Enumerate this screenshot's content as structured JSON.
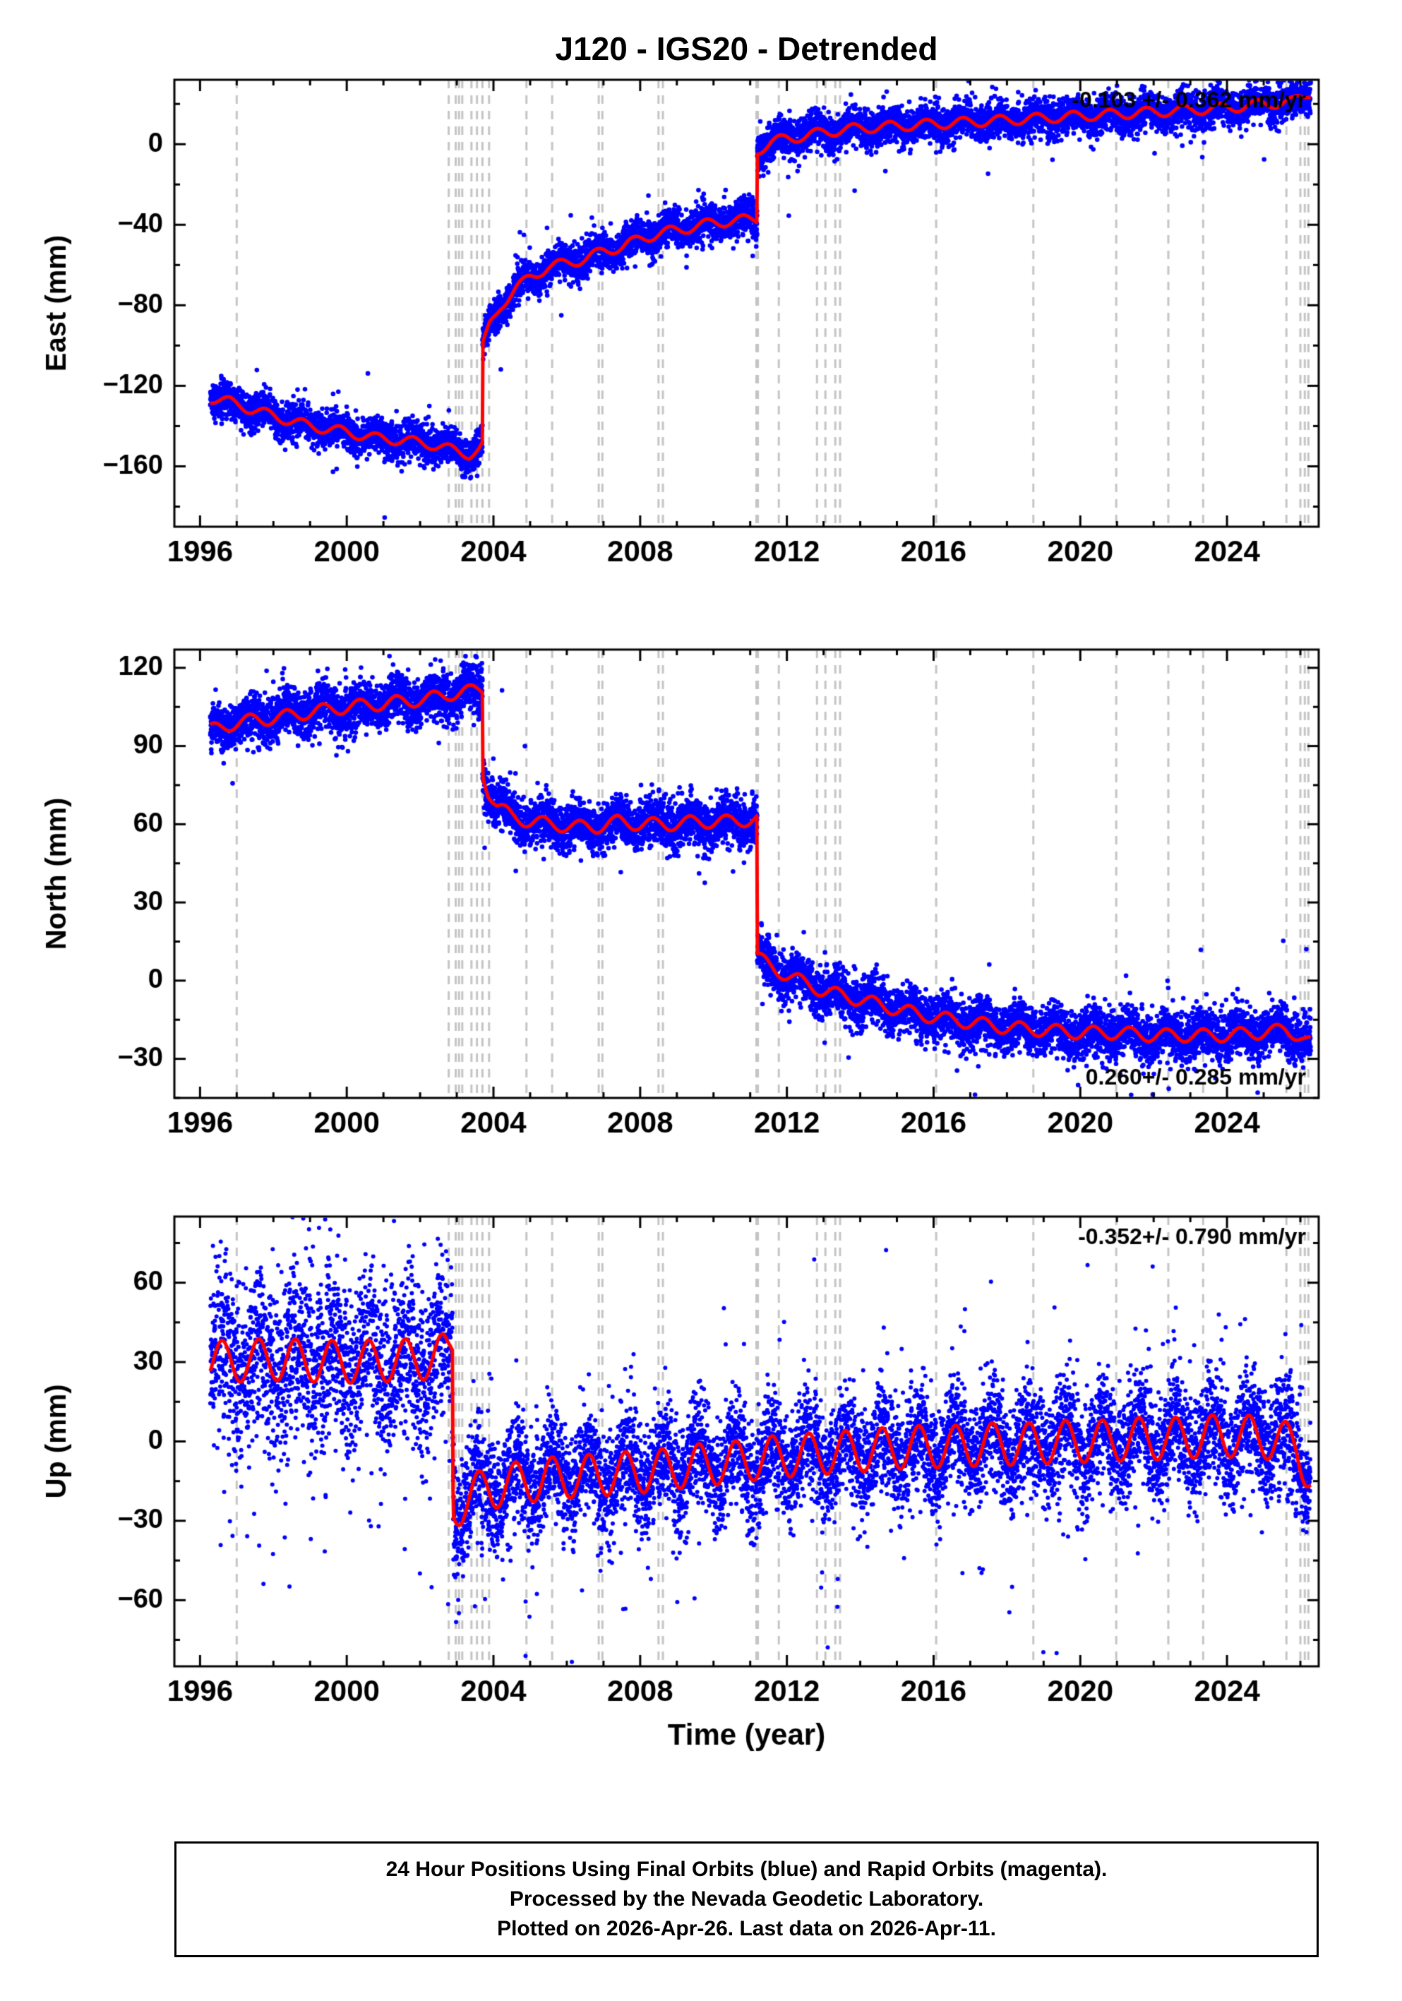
{
  "page": {
    "title": "J120 - IGS20 - Detrended",
    "caption_lines": [
      "24 Hour Positions Using Final Orbits (blue) and Rapid Orbits (magenta).",
      "Processed by the Nevada Geodetic Laboratory.",
      "Plotted on 2026-Apr-26. Last data on 2026-Apr-11."
    ]
  },
  "colors": {
    "points": "#0000ff",
    "trend_line": "#ff0000",
    "event_lines": "#c4c4c4",
    "frame": "#000000",
    "background": "#ffffff"
  },
  "chart_data": {
    "type": "scatter",
    "title": "J120 - IGS20 - Detrended",
    "xlabel": "Time (year)",
    "x_range": [
      1995.3,
      2026.5
    ],
    "xticks": [
      1996,
      2000,
      2004,
      2008,
      2012,
      2016,
      2020,
      2024
    ],
    "x_minor_step": 1,
    "data_span": [
      1996.28,
      2026.28
    ],
    "event_lines": [
      1997.0,
      2002.78,
      2002.97,
      2003.06,
      2003.15,
      2003.4,
      2003.55,
      2003.7,
      2003.88,
      2004.9,
      2005.6,
      2006.87,
      2006.97,
      2008.5,
      2008.62,
      2011.17,
      2011.21,
      2011.78,
      2012.82,
      2013.05,
      2013.32,
      2013.45,
      2016.07,
      2018.72,
      2020.98,
      2022.4,
      2023.35,
      2025.62,
      2026.0,
      2026.12,
      2026.22
    ],
    "panels": [
      {
        "name": "east",
        "ylabel": "East (mm)",
        "ylim": [
          -190,
          32
        ],
        "yticks": [
          0,
          -40,
          -80,
          -120,
          -160
        ],
        "y_minor_step": 20,
        "rate_text": "-0.103 +/- 0.362 mm/yr",
        "rate_corner": "top-right",
        "seasonal_amp_mm": 2.5,
        "seasonal_phase": 0.55,
        "noise_segments": [
          [
            1995.0,
            2026.6,
            4.5,
            0.015
          ]
        ],
        "trend_mm": [
          [
            1996.28,
            -126
          ],
          [
            1996.8,
            -128
          ],
          [
            1997.3,
            -131
          ],
          [
            1998.0,
            -135
          ],
          [
            1999.0,
            -140
          ],
          [
            2000.0,
            -143
          ],
          [
            2000.8,
            -146
          ],
          [
            2001.5,
            -147
          ],
          [
            2002.3,
            -149
          ],
          [
            2002.9,
            -152
          ],
          [
            2003.35,
            -154
          ],
          [
            2003.6,
            -152
          ],
          [
            2003.7,
            -150
          ],
          [
            2003.7,
            -101
          ],
          [
            2003.9,
            -90
          ],
          [
            2004.2,
            -80
          ],
          [
            2004.6,
            -72
          ],
          [
            2005.0,
            -66
          ],
          [
            2005.5,
            -61
          ],
          [
            2006.0,
            -59
          ],
          [
            2006.5,
            -57
          ],
          [
            2007.0,
            -53
          ],
          [
            2007.5,
            -51
          ],
          [
            2008.0,
            -47
          ],
          [
            2008.6,
            -44
          ],
          [
            2009.2,
            -42
          ],
          [
            2010.0,
            -39
          ],
          [
            2010.6,
            -38
          ],
          [
            2011.19,
            -37
          ],
          [
            2011.19,
            -3
          ],
          [
            2011.6,
            1
          ],
          [
            2012.0,
            3
          ],
          [
            2012.5,
            4
          ],
          [
            2013.0,
            6
          ],
          [
            2014.0,
            8
          ],
          [
            2015.0,
            9
          ],
          [
            2016.0,
            10
          ],
          [
            2017.0,
            11
          ],
          [
            2018.0,
            12
          ],
          [
            2019.0,
            13
          ],
          [
            2020.0,
            14
          ],
          [
            2021.0,
            15
          ],
          [
            2022.0,
            16
          ],
          [
            2023.0,
            17
          ],
          [
            2024.0,
            18
          ],
          [
            2025.0,
            20
          ],
          [
            2025.8,
            21
          ],
          [
            2026.28,
            26
          ]
        ]
      },
      {
        "name": "north",
        "ylabel": "North (mm)",
        "ylim": [
          -45,
          127
        ],
        "yticks": [
          120,
          90,
          60,
          30,
          0,
          -30
        ],
        "y_minor_step": 15,
        "rate_text": "0.260+/- 0.285 mm/yr",
        "rate_corner": "bottom-right",
        "seasonal_amp_mm": 2.5,
        "seasonal_phase": 0.1,
        "noise_segments": [
          [
            1995.0,
            2026.6,
            4.5,
            0.015
          ]
        ],
        "trend_mm": [
          [
            1996.28,
            96
          ],
          [
            1997.0,
            99
          ],
          [
            1997.5,
            100
          ],
          [
            1998.2,
            101
          ],
          [
            1999.0,
            103
          ],
          [
            2000.0,
            105
          ],
          [
            2000.8,
            106
          ],
          [
            2001.5,
            107
          ],
          [
            2002.2,
            108
          ],
          [
            2002.8,
            110
          ],
          [
            2003.4,
            111
          ],
          [
            2003.7,
            112
          ],
          [
            2003.7,
            80
          ],
          [
            2003.85,
            73
          ],
          [
            2004.1,
            67
          ],
          [
            2004.5,
            63
          ],
          [
            2005.0,
            61
          ],
          [
            2005.6,
            60
          ],
          [
            2006.2,
            59
          ],
          [
            2006.8,
            59
          ],
          [
            2007.4,
            61
          ],
          [
            2008.0,
            60
          ],
          [
            2008.8,
            60
          ],
          [
            2009.6,
            61
          ],
          [
            2010.4,
            61
          ],
          [
            2011.19,
            62
          ],
          [
            2011.19,
            9
          ],
          [
            2011.5,
            6
          ],
          [
            2012.0,
            2
          ],
          [
            2012.5,
            -1
          ],
          [
            2013.0,
            -4
          ],
          [
            2013.6,
            -6
          ],
          [
            2014.2,
            -8
          ],
          [
            2015.0,
            -11
          ],
          [
            2016.0,
            -14
          ],
          [
            2017.0,
            -16
          ],
          [
            2018.0,
            -18
          ],
          [
            2019.0,
            -19
          ],
          [
            2020.0,
            -20
          ],
          [
            2021.0,
            -20
          ],
          [
            2022.0,
            -21
          ],
          [
            2023.0,
            -21
          ],
          [
            2024.0,
            -21
          ],
          [
            2024.8,
            -20
          ],
          [
            2025.6,
            -19
          ],
          [
            2026.0,
            -21
          ],
          [
            2026.28,
            -24
          ]
        ]
      },
      {
        "name": "up",
        "ylabel": "Up (mm)",
        "ylim": [
          -85,
          85
        ],
        "yticks": [
          60,
          30,
          0,
          -30,
          -60
        ],
        "y_minor_step": 15,
        "rate_text": "-0.352+/- 0.790 mm/yr",
        "rate_corner": "top-right",
        "seasonal_amp_mm": 8,
        "seasonal_phase": 0.35,
        "noise_segments": [
          [
            1995.0,
            2003.0,
            15,
            0.08
          ],
          [
            2003.0,
            2026.6,
            10,
            0.04
          ]
        ],
        "trend_mm": [
          [
            1996.28,
            30
          ],
          [
            1998.0,
            31
          ],
          [
            2000.0,
            30
          ],
          [
            2002.0,
            31
          ],
          [
            2002.75,
            33
          ],
          [
            2002.88,
            36
          ],
          [
            2002.9,
            -26
          ],
          [
            2003.3,
            -21
          ],
          [
            2003.8,
            -18
          ],
          [
            2004.5,
            -16
          ],
          [
            2005.5,
            -14
          ],
          [
            2006.5,
            -13
          ],
          [
            2007.5,
            -12
          ],
          [
            2008.5,
            -11
          ],
          [
            2009.5,
            -9
          ],
          [
            2010.5,
            -8
          ],
          [
            2011.5,
            -6
          ],
          [
            2012.5,
            -5
          ],
          [
            2013.5,
            -4
          ],
          [
            2014.5,
            -3
          ],
          [
            2015.5,
            -2
          ],
          [
            2016.5,
            -2
          ],
          [
            2017.5,
            -1
          ],
          [
            2018.5,
            -1
          ],
          [
            2019.5,
            0
          ],
          [
            2020.5,
            0
          ],
          [
            2021.5,
            1
          ],
          [
            2022.5,
            1
          ],
          [
            2023.5,
            2
          ],
          [
            2024.5,
            2
          ],
          [
            2025.3,
            1
          ],
          [
            2025.9,
            -2
          ],
          [
            2026.28,
            -13
          ]
        ]
      }
    ]
  }
}
